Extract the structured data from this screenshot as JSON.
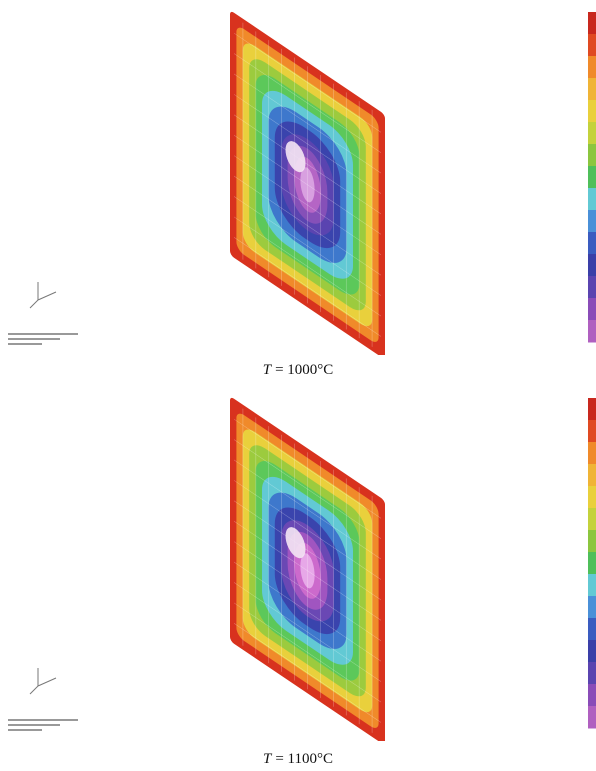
{
  "panels": [
    {
      "caption": {
        "variable": "T",
        "text": "= 1000°C"
      }
    },
    {
      "caption": {
        "variable": "T",
        "text": "= 1100°C"
      }
    }
  ]
}
